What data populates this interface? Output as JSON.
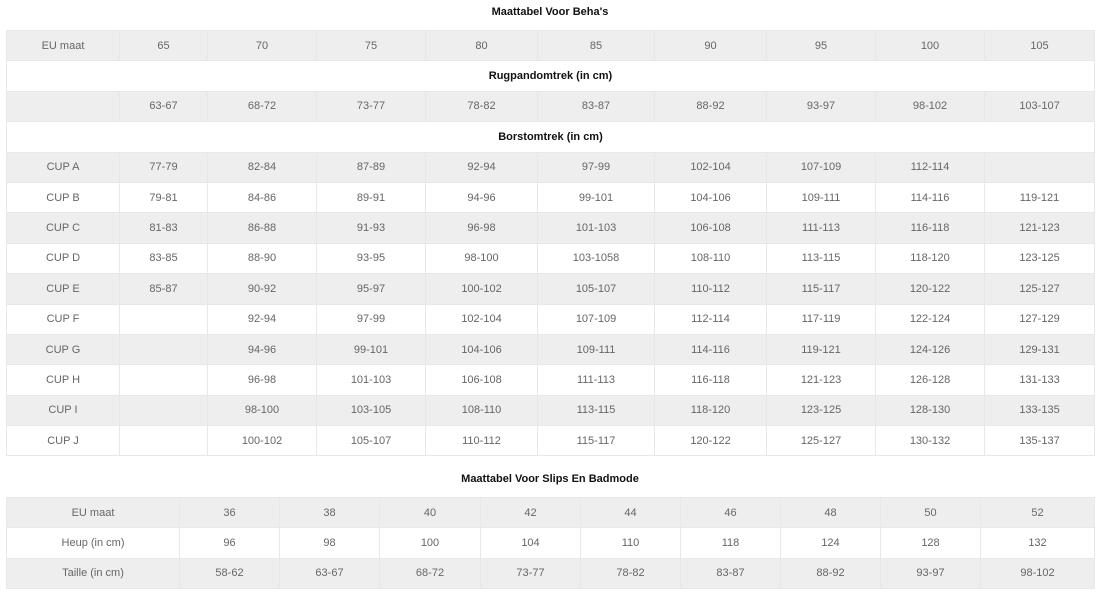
{
  "bra": {
    "title": "Maattabel Voor Beha's",
    "eu_label": "EU maat",
    "eu_sizes": [
      "65",
      "70",
      "75",
      "80",
      "85",
      "90",
      "95",
      "100",
      "105"
    ],
    "band_heading": "Rugpandomtrek (in cm)",
    "band_label": "",
    "band": [
      "63-67",
      "68-72",
      "73-77",
      "78-82",
      "83-87",
      "88-92",
      "93-97",
      "98-102",
      "103-107"
    ],
    "bust_heading": "Borstomtrek (in cm)",
    "cups": [
      {
        "label": "CUP A",
        "values": [
          "77-79",
          "82-84",
          "87-89",
          "92-94",
          "97-99",
          "102-104",
          "107-109",
          "112-114",
          ""
        ]
      },
      {
        "label": "CUP B",
        "values": [
          "79-81",
          "84-86",
          "89-91",
          "94-96",
          "99-101",
          "104-106",
          "109-111",
          "114-116",
          "119-121"
        ]
      },
      {
        "label": "CUP C",
        "values": [
          "81-83",
          "86-88",
          "91-93",
          "96-98",
          "101-103",
          "106-108",
          "111-113",
          "116-118",
          "121-123"
        ]
      },
      {
        "label": "CUP D",
        "values": [
          "83-85",
          "88-90",
          "93-95",
          "98-100",
          "103-1058",
          "108-110",
          "113-115",
          "118-120",
          "123-125"
        ]
      },
      {
        "label": "CUP E",
        "values": [
          "85-87",
          "90-92",
          "95-97",
          "100-102",
          "105-107",
          "110-112",
          "115-117",
          "120-122",
          "125-127"
        ]
      },
      {
        "label": "CUP F",
        "values": [
          "",
          "92-94",
          "97-99",
          "102-104",
          "107-109",
          "112-114",
          "117-119",
          "122-124",
          "127-129"
        ]
      },
      {
        "label": "CUP G",
        "values": [
          "",
          "94-96",
          "99-101",
          "104-106",
          "109-111",
          "114-116",
          "119-121",
          "124-126",
          "129-131"
        ]
      },
      {
        "label": "CUP H",
        "values": [
          "",
          "96-98",
          "101-103",
          "106-108",
          "111-113",
          "116-118",
          "121-123",
          "126-128",
          "131-133"
        ]
      },
      {
        "label": "CUP I",
        "values": [
          "",
          "98-100",
          "103-105",
          "108-110",
          "113-115",
          "118-120",
          "123-125",
          "128-130",
          "133-135"
        ]
      },
      {
        "label": "CUP J",
        "values": [
          "",
          "100-102",
          "105-107",
          "110-112",
          "115-117",
          "120-122",
          "125-127",
          "130-132",
          "135-137"
        ]
      }
    ]
  },
  "briefs": {
    "title": "Maattabel Voor Slips En Badmode",
    "rows": [
      {
        "label": "EU maat",
        "values": [
          "36",
          "38",
          "40",
          "42",
          "44",
          "46",
          "48",
          "50",
          "52"
        ]
      },
      {
        "label": "Heup (in cm)",
        "values": [
          "96",
          "98",
          "100",
          "104",
          "110",
          "118",
          "124",
          "128",
          "132"
        ]
      },
      {
        "label": "Taille (in cm)",
        "values": [
          "58-62",
          "63-67",
          "68-72",
          "73-77",
          "78-82",
          "83-87",
          "88-92",
          "93-97",
          "98-102"
        ]
      }
    ]
  }
}
